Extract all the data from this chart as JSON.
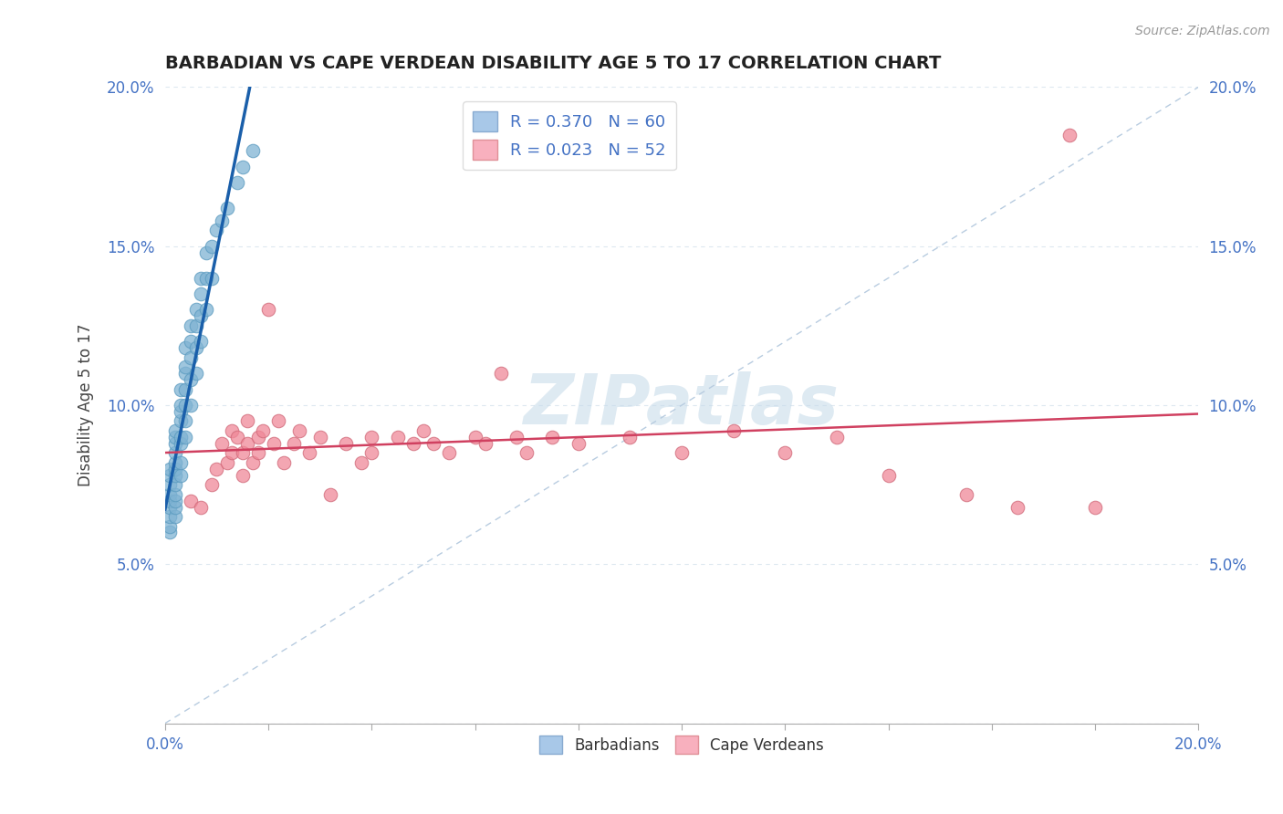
{
  "title": "BARBADIAN VS CAPE VERDEAN DISABILITY AGE 5 TO 17 CORRELATION CHART",
  "source": "Source: ZipAtlas.com",
  "ylabel": "Disability Age 5 to 17",
  "xlim": [
    0.0,
    0.2
  ],
  "ylim": [
    0.0,
    0.2
  ],
  "x_ticks": [
    0.0,
    0.02,
    0.04,
    0.06,
    0.08,
    0.1,
    0.12,
    0.14,
    0.16,
    0.18,
    0.2
  ],
  "y_ticks": [
    0.0,
    0.05,
    0.1,
    0.15,
    0.2
  ],
  "barbadian_color": "#7fb3d3",
  "barbadian_edge": "#5a9abf",
  "cape_verdean_color": "#f08898",
  "cape_verdean_edge": "#d06878",
  "trendline_barbadian_color": "#1a5faa",
  "trendline_cape_verdean_color": "#d04060",
  "diagonal_color": "#b8cce0",
  "grid_color": "#dde8f0",
  "watermark_color": "#c8dcea",
  "barbadian_points": [
    [
      0.001,
      0.06
    ],
    [
      0.001,
      0.062
    ],
    [
      0.001,
      0.065
    ],
    [
      0.001,
      0.068
    ],
    [
      0.001,
      0.07
    ],
    [
      0.001,
      0.072
    ],
    [
      0.001,
      0.075
    ],
    [
      0.001,
      0.078
    ],
    [
      0.001,
      0.08
    ],
    [
      0.002,
      0.065
    ],
    [
      0.002,
      0.068
    ],
    [
      0.002,
      0.07
    ],
    [
      0.002,
      0.072
    ],
    [
      0.002,
      0.075
    ],
    [
      0.002,
      0.078
    ],
    [
      0.002,
      0.08
    ],
    [
      0.002,
      0.082
    ],
    [
      0.002,
      0.085
    ],
    [
      0.002,
      0.088
    ],
    [
      0.002,
      0.09
    ],
    [
      0.002,
      0.092
    ],
    [
      0.003,
      0.078
    ],
    [
      0.003,
      0.082
    ],
    [
      0.003,
      0.088
    ],
    [
      0.003,
      0.09
    ],
    [
      0.003,
      0.095
    ],
    [
      0.003,
      0.098
    ],
    [
      0.003,
      0.1
    ],
    [
      0.003,
      0.105
    ],
    [
      0.004,
      0.09
    ],
    [
      0.004,
      0.095
    ],
    [
      0.004,
      0.1
    ],
    [
      0.004,
      0.105
    ],
    [
      0.004,
      0.11
    ],
    [
      0.004,
      0.112
    ],
    [
      0.004,
      0.118
    ],
    [
      0.005,
      0.1
    ],
    [
      0.005,
      0.108
    ],
    [
      0.005,
      0.115
    ],
    [
      0.005,
      0.12
    ],
    [
      0.005,
      0.125
    ],
    [
      0.006,
      0.11
    ],
    [
      0.006,
      0.118
    ],
    [
      0.006,
      0.125
    ],
    [
      0.006,
      0.13
    ],
    [
      0.007,
      0.12
    ],
    [
      0.007,
      0.128
    ],
    [
      0.007,
      0.135
    ],
    [
      0.007,
      0.14
    ],
    [
      0.008,
      0.13
    ],
    [
      0.008,
      0.14
    ],
    [
      0.008,
      0.148
    ],
    [
      0.009,
      0.14
    ],
    [
      0.009,
      0.15
    ],
    [
      0.01,
      0.155
    ],
    [
      0.011,
      0.158
    ],
    [
      0.012,
      0.162
    ],
    [
      0.014,
      0.17
    ],
    [
      0.015,
      0.175
    ],
    [
      0.017,
      0.18
    ]
  ],
  "cape_verdean_points": [
    [
      0.005,
      0.07
    ],
    [
      0.007,
      0.068
    ],
    [
      0.009,
      0.075
    ],
    [
      0.01,
      0.08
    ],
    [
      0.011,
      0.088
    ],
    [
      0.012,
      0.082
    ],
    [
      0.013,
      0.085
    ],
    [
      0.013,
      0.092
    ],
    [
      0.014,
      0.09
    ],
    [
      0.015,
      0.085
    ],
    [
      0.015,
      0.078
    ],
    [
      0.016,
      0.095
    ],
    [
      0.016,
      0.088
    ],
    [
      0.017,
      0.082
    ],
    [
      0.018,
      0.09
    ],
    [
      0.018,
      0.085
    ],
    [
      0.019,
      0.092
    ],
    [
      0.02,
      0.13
    ],
    [
      0.021,
      0.088
    ],
    [
      0.022,
      0.095
    ],
    [
      0.023,
      0.082
    ],
    [
      0.025,
      0.088
    ],
    [
      0.026,
      0.092
    ],
    [
      0.028,
      0.085
    ],
    [
      0.03,
      0.09
    ],
    [
      0.032,
      0.072
    ],
    [
      0.035,
      0.088
    ],
    [
      0.038,
      0.082
    ],
    [
      0.04,
      0.085
    ],
    [
      0.04,
      0.09
    ],
    [
      0.045,
      0.09
    ],
    [
      0.048,
      0.088
    ],
    [
      0.05,
      0.092
    ],
    [
      0.052,
      0.088
    ],
    [
      0.055,
      0.085
    ],
    [
      0.06,
      0.09
    ],
    [
      0.062,
      0.088
    ],
    [
      0.065,
      0.11
    ],
    [
      0.068,
      0.09
    ],
    [
      0.07,
      0.085
    ],
    [
      0.075,
      0.09
    ],
    [
      0.08,
      0.088
    ],
    [
      0.09,
      0.09
    ],
    [
      0.1,
      0.085
    ],
    [
      0.11,
      0.092
    ],
    [
      0.12,
      0.085
    ],
    [
      0.13,
      0.09
    ],
    [
      0.14,
      0.078
    ],
    [
      0.155,
      0.072
    ],
    [
      0.165,
      0.068
    ],
    [
      0.175,
      0.185
    ],
    [
      0.18,
      0.068
    ]
  ]
}
